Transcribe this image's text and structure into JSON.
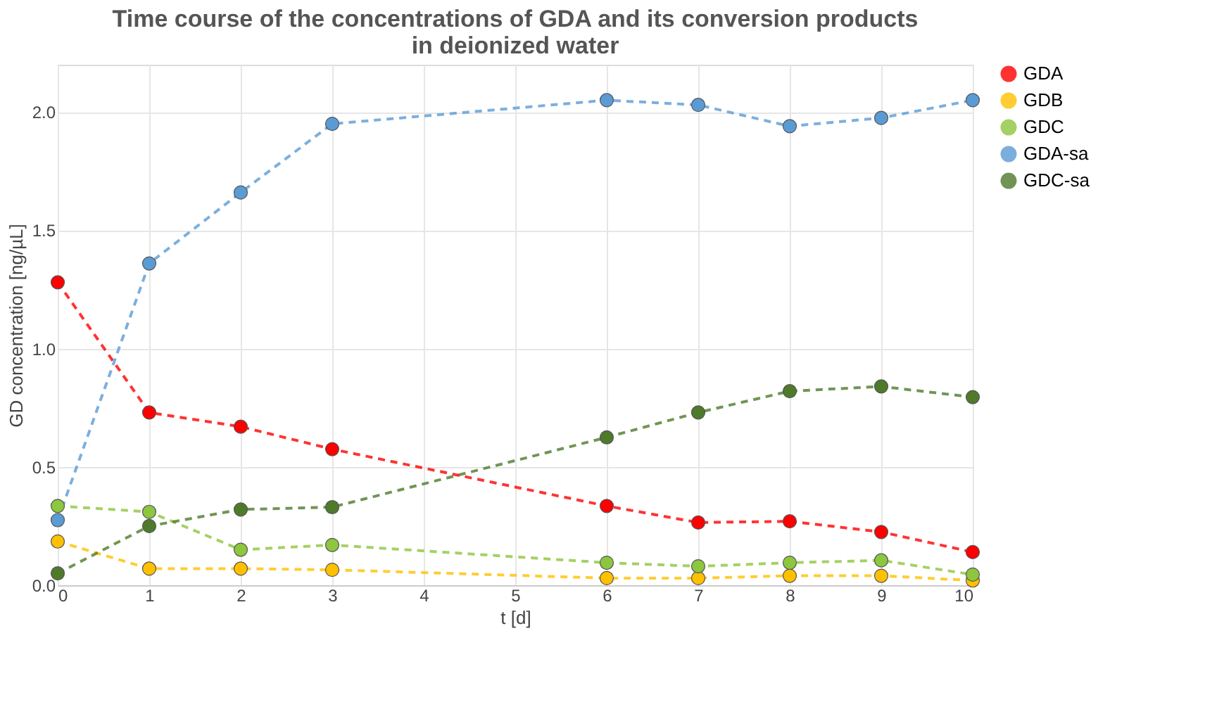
{
  "chart_data": {
    "type": "line",
    "title": "Time course of the concentrations of GDA and its conversion products\nin deionized water",
    "xlabel": "t [d]",
    "ylabel": "GD concentration [ng/µL]",
    "x": [
      0,
      1,
      2,
      3,
      6,
      7,
      8,
      9,
      10
    ],
    "series": [
      {
        "name": "GDA",
        "color": "#ff0000",
        "values": [
          1.28,
          0.73,
          0.67,
          0.575,
          0.335,
          0.265,
          0.27,
          0.225,
          0.14
        ]
      },
      {
        "name": "GDB",
        "color": "#ffc000",
        "values": [
          0.185,
          0.07,
          0.07,
          0.065,
          0.03,
          0.03,
          0.04,
          0.04,
          0.02
        ]
      },
      {
        "name": "GDC",
        "color": "#8dc63f",
        "values": [
          0.335,
          0.31,
          0.15,
          0.17,
          0.095,
          0.08,
          0.095,
          0.105,
          0.045
        ]
      },
      {
        "name": "GDA-sa",
        "color": "#5b9bd5",
        "values": [
          0.275,
          1.36,
          1.66,
          1.95,
          2.05,
          2.03,
          1.94,
          1.975,
          2.05
        ]
      },
      {
        "name": "GDC-sa",
        "color": "#4e7a2a",
        "values": [
          0.05,
          0.25,
          0.32,
          0.33,
          0.625,
          0.73,
          0.82,
          0.84,
          0.795
        ]
      }
    ],
    "xlim": [
      0,
      10
    ],
    "xticks": [
      0,
      1,
      2,
      3,
      4,
      5,
      6,
      7,
      8,
      9,
      10
    ],
    "ylim": [
      0,
      2.2
    ],
    "yticks": [
      {
        "value": 0,
        "label": "0.0"
      },
      {
        "value": 0.5,
        "label": "0.5"
      },
      {
        "value": 1,
        "label": "1.0"
      },
      {
        "value": 1.5,
        "label": "1.5"
      },
      {
        "value": 2,
        "label": "2.0"
      }
    ],
    "grid": true,
    "legend": "right",
    "marker": "circle",
    "line_style": "dashed"
  }
}
